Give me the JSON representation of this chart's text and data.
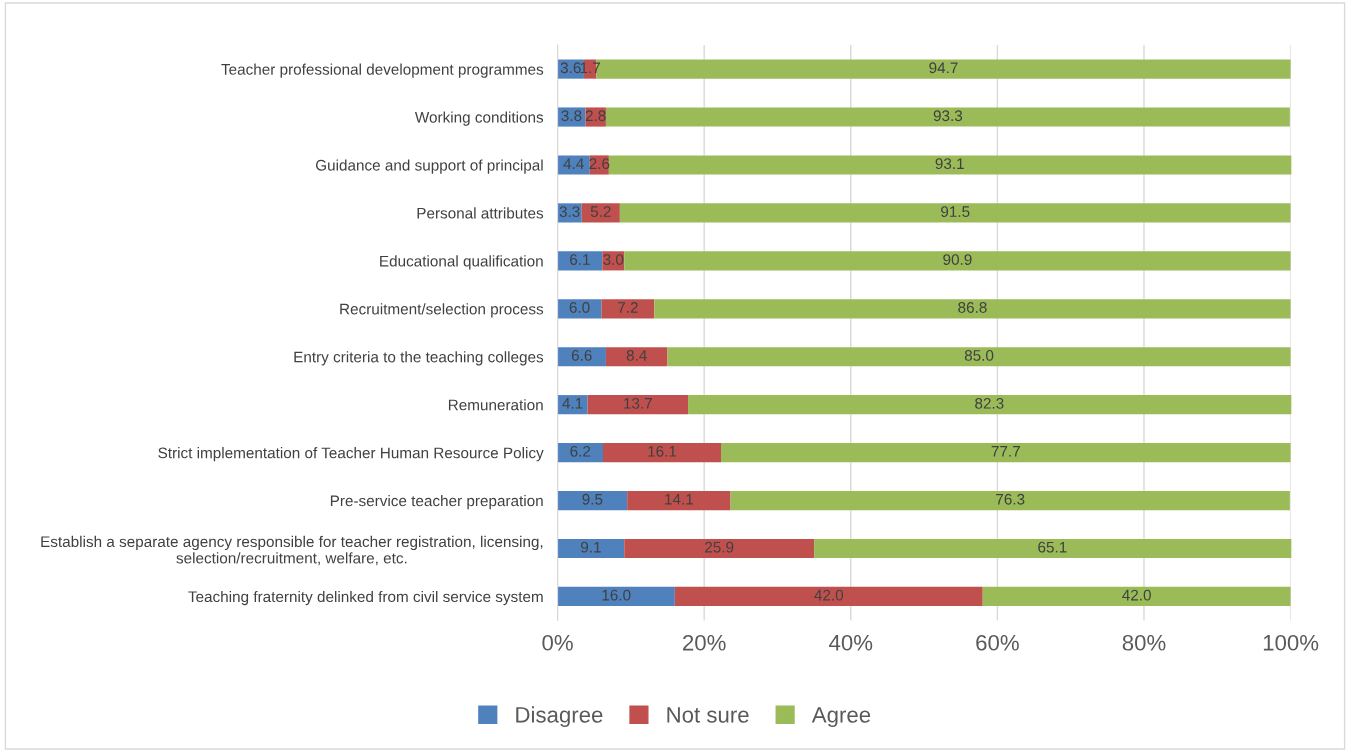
{
  "chart_data": {
    "type": "bar",
    "orientation": "horizontal",
    "stacked": true,
    "categories": [
      "Teacher professional development programmes",
      "Working conditions",
      "Guidance and support of principal",
      "Personal attributes",
      "Educational qualification",
      "Recruitment/selection process",
      "Entry criteria to the teaching colleges",
      "Remuneration",
      "Strict implementation of Teacher Human Resource Policy",
      "Pre-service teacher preparation",
      "Establish a separate agency responsible for teacher registration, licensing,\nselection/recruitment, welfare, etc.",
      "Teaching fraternity delinked from civil service system"
    ],
    "series": [
      {
        "name": "Disagree",
        "color": "#4f81bd",
        "values": [
          3.6,
          3.8,
          4.4,
          3.3,
          6.1,
          6.0,
          6.6,
          4.1,
          6.2,
          9.5,
          9.1,
          16.0
        ],
        "value_labels": [
          "3.6",
          "3.8",
          "4.4",
          "3.3",
          "6.1",
          "6.0",
          "6.6",
          "4.1",
          "6.2",
          "9.5",
          "9.1",
          "16.0"
        ]
      },
      {
        "name": "Not sure",
        "color": "#c0504d",
        "values": [
          1.7,
          2.8,
          2.6,
          5.2,
          3.0,
          7.2,
          8.4,
          13.7,
          16.1,
          14.1,
          25.9,
          42.0
        ],
        "value_labels": [
          "1.7",
          "2.8",
          "2.6",
          "5.2",
          "3.0",
          "7.2",
          "8.4",
          "13.7",
          "16.1",
          "14.1",
          "25.9",
          "42.0"
        ]
      },
      {
        "name": "Agree",
        "color": "#9bbb59",
        "values": [
          94.7,
          93.3,
          93.1,
          91.5,
          90.9,
          86.8,
          85.0,
          82.3,
          77.7,
          76.3,
          65.1,
          42.0
        ],
        "value_labels": [
          "94.7",
          "93.3",
          "93.1",
          "91.5",
          "90.9",
          "86.8",
          "85.0",
          "82.3",
          "77.7",
          "76.3",
          "65.1",
          "42.0"
        ]
      }
    ],
    "xlim": [
      0,
      100
    ],
    "xticks": [
      {
        "value": 0,
        "label": "0%"
      },
      {
        "value": 20,
        "label": "20%"
      },
      {
        "value": 40,
        "label": "40%"
      },
      {
        "value": 60,
        "label": "60%"
      },
      {
        "value": 80,
        "label": "80%"
      },
      {
        "value": 100,
        "label": "100%"
      }
    ],
    "grid": "x",
    "legend": "bottom"
  }
}
